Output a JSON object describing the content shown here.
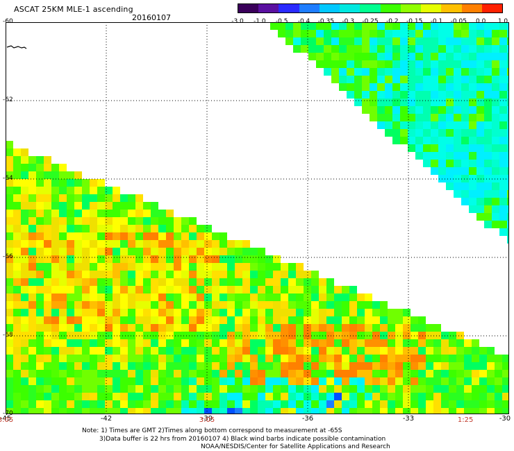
{
  "header": {
    "title": "ASCAT 25KM MLE-1 ascending",
    "date": "20160107"
  },
  "colorbar": {
    "ticks": [
      "-3.0",
      "-1.0",
      "-0.5",
      "-0.4",
      "-0.35",
      "-0.3",
      "-0.25",
      "-0.2",
      "-0.15",
      "-0.1",
      "-0.05",
      "0.0",
      "1.0"
    ],
    "colors": [
      "#3a005a",
      "#5a10a0",
      "#2a2aff",
      "#1e7dff",
      "#00c8ff",
      "#00e8e0",
      "#00ff90",
      "#3cff00",
      "#90ff00",
      "#e6ff00",
      "#ffc000",
      "#ff8000",
      "#ff2000"
    ]
  },
  "axes": {
    "lat_labels": [
      "-60",
      "-62",
      "-64",
      "-66",
      "-68",
      "-70"
    ],
    "lon_labels": [
      "-45",
      "-42",
      "-39",
      "-36",
      "-33",
      "-30"
    ],
    "lat_values": [
      -60,
      -62,
      -64,
      -66,
      -68,
      -70
    ],
    "lon_values": [
      -45,
      -42,
      -39,
      -36,
      -33,
      -30
    ]
  },
  "times": [
    {
      "label": "3:05",
      "lon": -45
    },
    {
      "label": "3:05",
      "lon": -39
    },
    {
      "label": "1:25",
      "lon": -31.3
    }
  ],
  "notes": {
    "line1": "Note: 1) Times are GMT 2)Times along bottom correspond to measurement at -65S",
    "line2": "3)Data buffer is 22 hrs from 20160107 4) Black wind barbs indicate possible contamination",
    "line3": "NOAA/NESDIS/Center for Satellite Applications and Research"
  }
}
